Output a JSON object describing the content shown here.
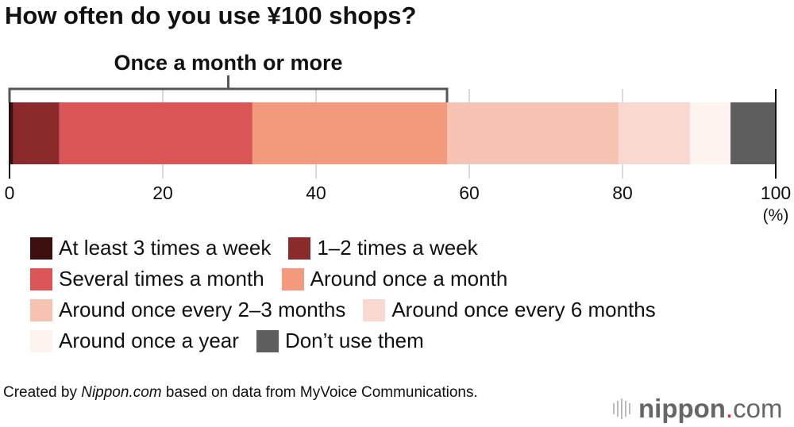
{
  "title": "How often do you use ¥100 shops?",
  "chart_data": {
    "type": "bar",
    "orientation": "horizontal-stacked",
    "title": "How often do you use ¥100 shops?",
    "xlabel": "(%)",
    "xlim": [
      0,
      100
    ],
    "ticks": [
      "0",
      "20",
      "40",
      "60",
      "80",
      "100"
    ],
    "grid": true,
    "legend_position": "bottom",
    "bracket_label": "Once a month or more",
    "bracket_range": [
      0,
      57.1
    ],
    "series": [
      {
        "name": "At least 3 times a week",
        "value": 0.5,
        "color": "#3d0f0f"
      },
      {
        "name": "1–2 times a week",
        "value": 6.0,
        "color": "#8b2a2a"
      },
      {
        "name": "Several times a month",
        "value": 25.2,
        "color": "#da5656"
      },
      {
        "name": "Around once a month",
        "value": 25.4,
        "color": "#f29a7b"
      },
      {
        "name": "Around once every 2–3 months",
        "value": 22.4,
        "color": "#f6c2b1"
      },
      {
        "name": "Around once every 6 months",
        "value": 9.3,
        "color": "#f9d9cf"
      },
      {
        "name": "Around once a year",
        "value": 5.3,
        "color": "#fcf2ee"
      },
      {
        "name": "Don’t use them",
        "value": 5.9,
        "color": "#5e5e5e"
      }
    ]
  },
  "legend_rows": [
    [
      0,
      1
    ],
    [
      2,
      3
    ],
    [
      4,
      5
    ],
    [
      6,
      7
    ]
  ],
  "credit": {
    "prefix": "Created by ",
    "site": "Nippon.com",
    "suffix": " based on data from MyVoice Communications."
  },
  "logo": {
    "name": "nippon",
    "dot": ".",
    "tld": "com"
  }
}
